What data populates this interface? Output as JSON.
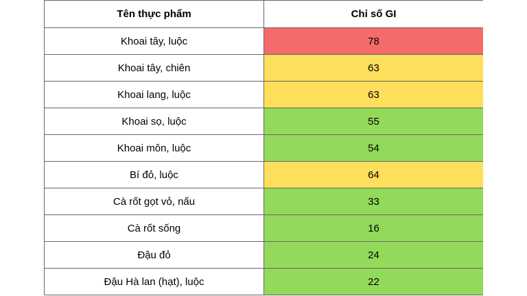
{
  "table": {
    "headers": [
      "Tên thực phẩm",
      "Chỉ số GI"
    ],
    "rows": [
      {
        "name": "Khoai tây, luộc",
        "gi": "78",
        "level": "red"
      },
      {
        "name": "Khoai tây, chiên",
        "gi": "63",
        "level": "yellow"
      },
      {
        "name": "Khoai lang, luộc",
        "gi": "63",
        "level": "yellow"
      },
      {
        "name": "Khoai sọ, luộc",
        "gi": "55",
        "level": "green"
      },
      {
        "name": "Khoai môn, luộc",
        "gi": "54",
        "level": "green"
      },
      {
        "name": "Bí đỏ, luộc",
        "gi": "64",
        "level": "yellow"
      },
      {
        "name": "Cà rốt gọt vỏ, nấu",
        "gi": "33",
        "level": "green"
      },
      {
        "name": "Cà rốt sống",
        "gi": "16",
        "level": "green"
      },
      {
        "name": "Đậu đỏ",
        "gi": "24",
        "level": "green"
      },
      {
        "name": "Đậu Hà lan (hạt), luộc",
        "gi": "22",
        "level": "green"
      }
    ]
  },
  "colors": {
    "red": "#f36c6a",
    "yellow": "#fddf5b",
    "green": "#93d95a",
    "border": "#666666"
  }
}
